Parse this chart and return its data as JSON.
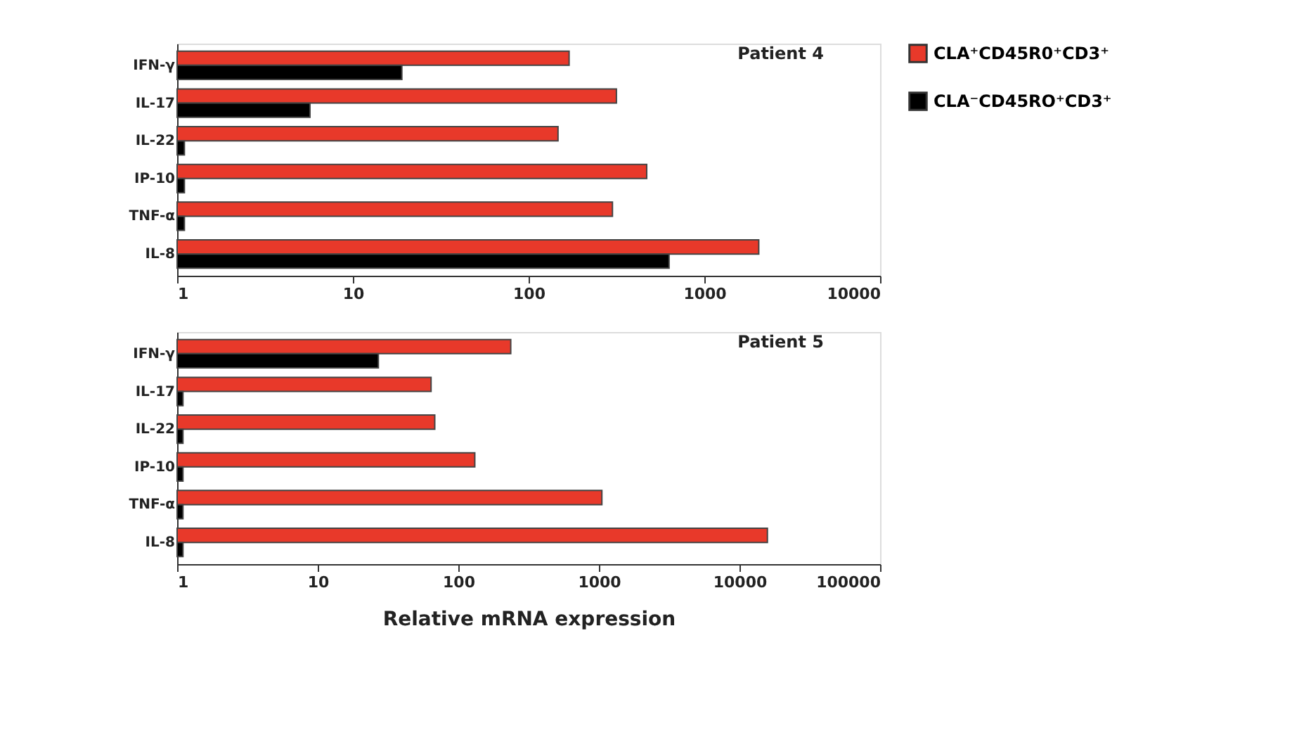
{
  "chart_data": [
    {
      "type": "bar",
      "orientation": "horizontal",
      "log": "x",
      "grid": false,
      "legend": "right",
      "categories": [
        "IFN-γ",
        "IL-17",
        "IL-22",
        "IP-10",
        "TNF-α",
        "IL-8"
      ],
      "series": [
        {
          "name": "CLA⁺CD45R0⁺CD3⁺",
          "color": "#e8392a",
          "values": [
            170,
            316,
            147,
            470,
            300,
            2040
          ]
        },
        {
          "name": "CLA⁻CD45RO⁺CD3⁺",
          "color": "#000000",
          "values": [
            19,
            5.7,
            1.1,
            1.1,
            1.1,
            630
          ]
        }
      ],
      "xlim": [
        1,
        10000
      ],
      "xticks": [
        1,
        10,
        100,
        1000,
        10000
      ],
      "annotations": [
        "Patient 4"
      ]
    },
    {
      "type": "bar",
      "orientation": "horizontal",
      "log": "x",
      "grid": false,
      "categories": [
        "IFN-γ",
        "IL-17",
        "IL-22",
        "IP-10",
        "TNF-α",
        "IL-8"
      ],
      "series": [
        {
          "color": "#e8392a",
          "values": [
            236,
            64,
            68,
            131,
            1050,
            15800
          ]
        },
        {
          "color": "#000000",
          "values": [
            27,
            1.1,
            1.1,
            1.1,
            1.1,
            1.1
          ]
        }
      ],
      "xlim": [
        1,
        100000
      ],
      "xticks": [
        1,
        10,
        100,
        1000,
        10000,
        100000
      ],
      "xlabel": "Relative mRNA expression",
      "annotations": [
        "Patient 5"
      ]
    }
  ]
}
